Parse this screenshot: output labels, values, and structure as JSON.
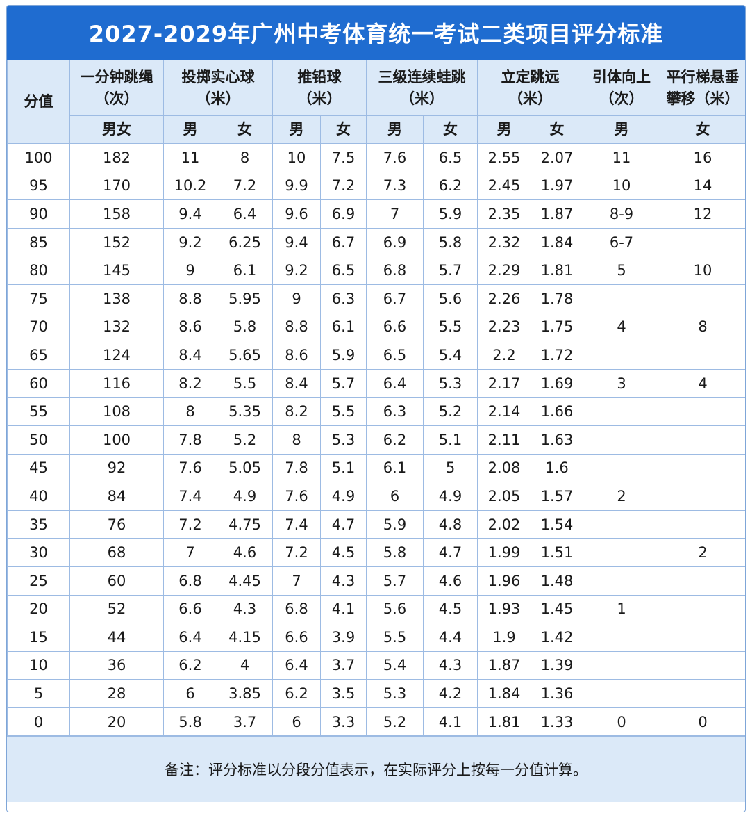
{
  "title": "2027-2029年广州中考体育统一考试二类项目评分标准",
  "headers": {
    "score": "分值",
    "rope_l1": "一分钟跳绳",
    "rope_l2": "（次）",
    "ball_l1": "投掷实心球",
    "ball_l2": "（米）",
    "shot_l1": "推铅球",
    "shot_l2": "（米）",
    "frog_l1": "三级连续蛙跳",
    "frog_l2": "（米）",
    "jump_l1": "立定跳远",
    "jump_l2": "（米）",
    "pull_l1": "引体向上",
    "pull_l2": "（次）",
    "bars_l1": "平行梯悬垂",
    "bars_l2": "攀移（米）",
    "male_female": "男女",
    "male": "男",
    "female": "女"
  },
  "rows": [
    [
      "100",
      "182",
      "11",
      "8",
      "10",
      "7.5",
      "7.6",
      "6.5",
      "2.55",
      "2.07",
      "11",
      "16"
    ],
    [
      "95",
      "170",
      "10.2",
      "7.2",
      "9.9",
      "7.2",
      "7.3",
      "6.2",
      "2.45",
      "1.97",
      "10",
      "14"
    ],
    [
      "90",
      "158",
      "9.4",
      "6.4",
      "9.6",
      "6.9",
      "7",
      "5.9",
      "2.35",
      "1.87",
      "8-9",
      "12"
    ],
    [
      "85",
      "152",
      "9.2",
      "6.25",
      "9.4",
      "6.7",
      "6.9",
      "5.8",
      "2.32",
      "1.84",
      "6-7",
      ""
    ],
    [
      "80",
      "145",
      "9",
      "6.1",
      "9.2",
      "6.5",
      "6.8",
      "5.7",
      "2.29",
      "1.81",
      "5",
      "10"
    ],
    [
      "75",
      "138",
      "8.8",
      "5.95",
      "9",
      "6.3",
      "6.7",
      "5.6",
      "2.26",
      "1.78",
      "",
      ""
    ],
    [
      "70",
      "132",
      "8.6",
      "5.8",
      "8.8",
      "6.1",
      "6.6",
      "5.5",
      "2.23",
      "1.75",
      "4",
      "8"
    ],
    [
      "65",
      "124",
      "8.4",
      "5.65",
      "8.6",
      "5.9",
      "6.5",
      "5.4",
      "2.2",
      "1.72",
      "",
      ""
    ],
    [
      "60",
      "116",
      "8.2",
      "5.5",
      "8.4",
      "5.7",
      "6.4",
      "5.3",
      "2.17",
      "1.69",
      "3",
      "4"
    ],
    [
      "55",
      "108",
      "8",
      "5.35",
      "8.2",
      "5.5",
      "6.3",
      "5.2",
      "2.14",
      "1.66",
      "",
      ""
    ],
    [
      "50",
      "100",
      "7.8",
      "5.2",
      "8",
      "5.3",
      "6.2",
      "5.1",
      "2.11",
      "1.63",
      "",
      ""
    ],
    [
      "45",
      "92",
      "7.6",
      "5.05",
      "7.8",
      "5.1",
      "6.1",
      "5",
      "2.08",
      "1.6",
      "",
      ""
    ],
    [
      "40",
      "84",
      "7.4",
      "4.9",
      "7.6",
      "4.9",
      "6",
      "4.9",
      "2.05",
      "1.57",
      "2",
      ""
    ],
    [
      "35",
      "76",
      "7.2",
      "4.75",
      "7.4",
      "4.7",
      "5.9",
      "4.8",
      "2.02",
      "1.54",
      "",
      ""
    ],
    [
      "30",
      "68",
      "7",
      "4.6",
      "7.2",
      "4.5",
      "5.8",
      "4.7",
      "1.99",
      "1.51",
      "",
      "2"
    ],
    [
      "25",
      "60",
      "6.8",
      "4.45",
      "7",
      "4.3",
      "5.7",
      "4.6",
      "1.96",
      "1.48",
      "",
      ""
    ],
    [
      "20",
      "52",
      "6.6",
      "4.3",
      "6.8",
      "4.1",
      "5.6",
      "4.5",
      "1.93",
      "1.45",
      "1",
      ""
    ],
    [
      "15",
      "44",
      "6.4",
      "4.15",
      "6.6",
      "3.9",
      "5.5",
      "4.4",
      "1.9",
      "1.42",
      "",
      ""
    ],
    [
      "10",
      "36",
      "6.2",
      "4",
      "6.4",
      "3.7",
      "5.4",
      "4.3",
      "1.87",
      "1.39",
      "",
      ""
    ],
    [
      "5",
      "28",
      "6",
      "3.85",
      "6.2",
      "3.5",
      "5.3",
      "4.2",
      "1.84",
      "1.36",
      "",
      ""
    ],
    [
      "0",
      "20",
      "5.8",
      "3.7",
      "6",
      "3.3",
      "5.2",
      "4.1",
      "1.81",
      "1.33",
      "0",
      "0"
    ]
  ],
  "note": "备注：评分标准以分段分值表示，在实际评分上按每一分值计算。"
}
